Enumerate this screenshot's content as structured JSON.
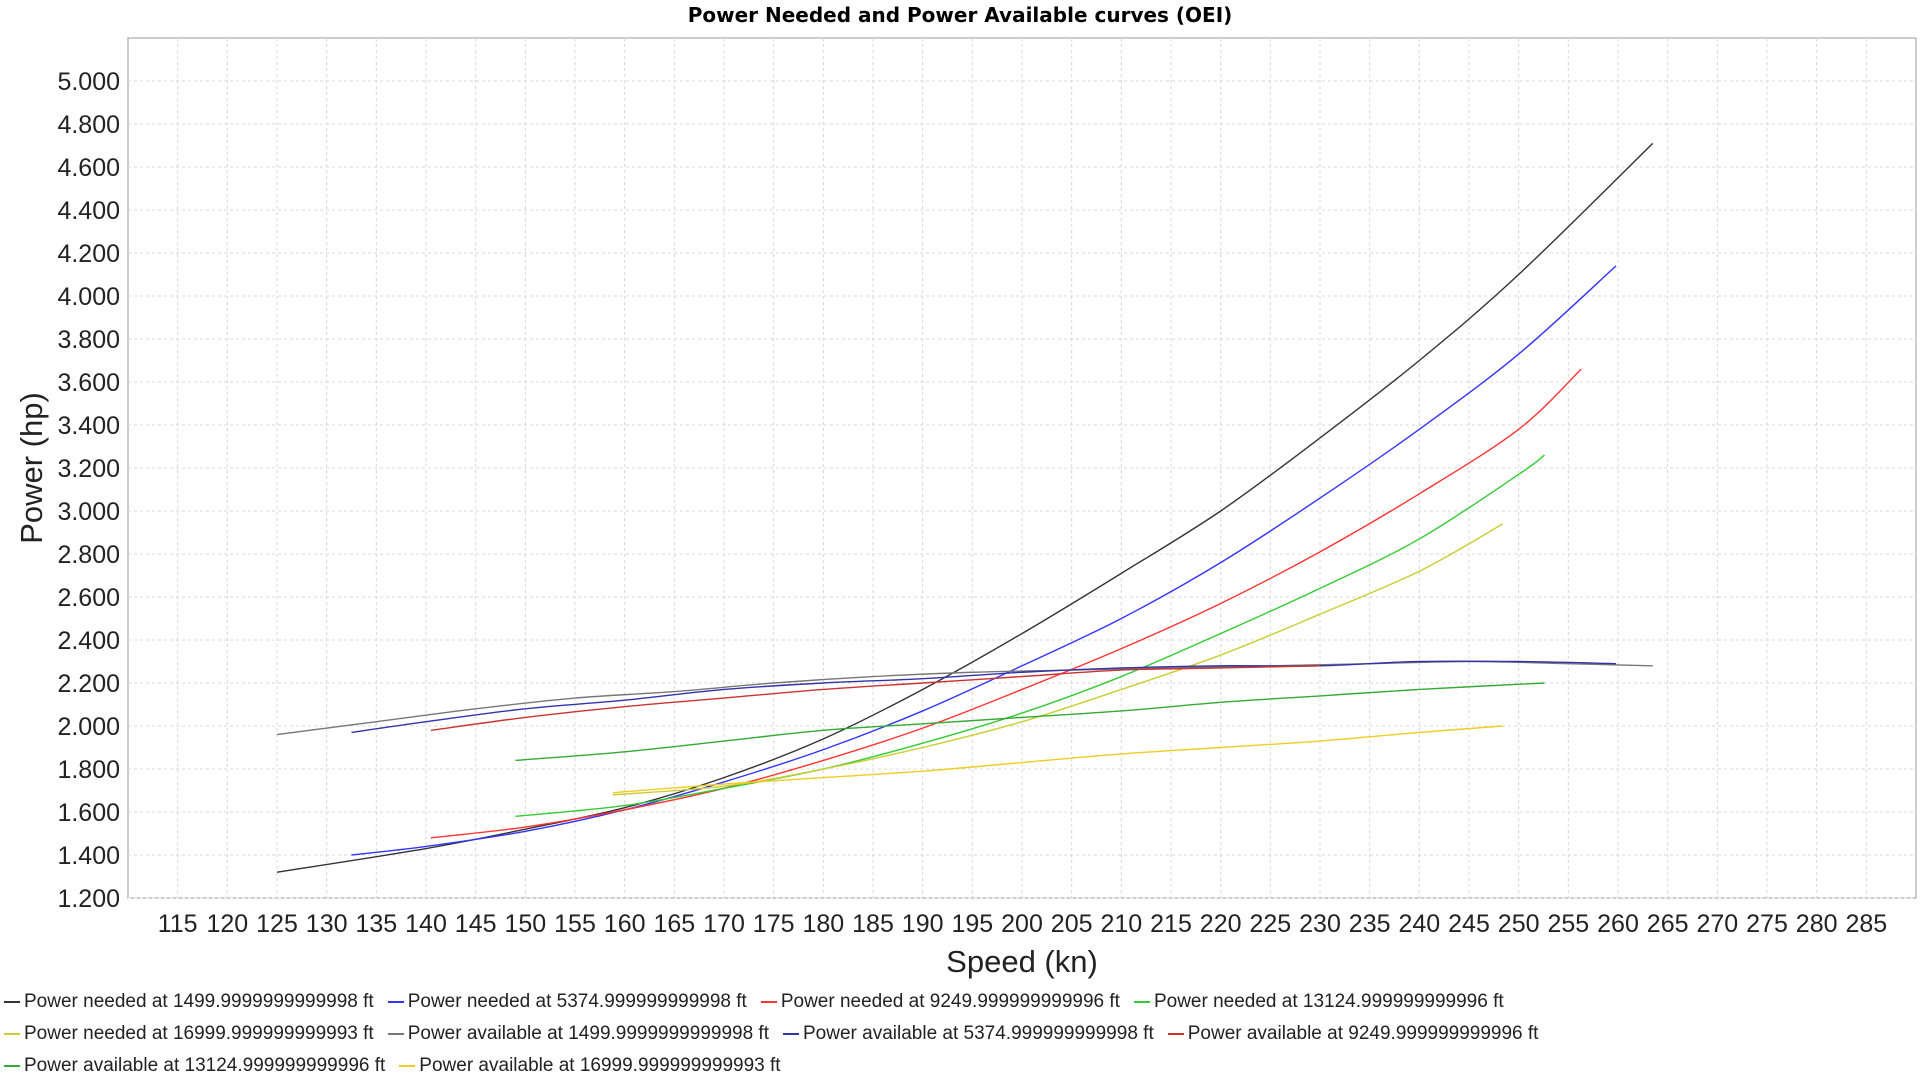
{
  "chart_data": {
    "type": "line",
    "title": "Power Needed and Power Available curves (OEI)",
    "xlabel": "Speed (kn)",
    "ylabel": "Power (hp)",
    "xlim": [
      110,
      290
    ],
    "ylim": [
      1200,
      5200
    ],
    "x_ticks": [
      115,
      120,
      125,
      130,
      135,
      140,
      145,
      150,
      155,
      160,
      165,
      170,
      175,
      180,
      185,
      190,
      195,
      200,
      205,
      210,
      215,
      220,
      225,
      230,
      235,
      240,
      245,
      250,
      255,
      260,
      265,
      270,
      275,
      280,
      285
    ],
    "x_tick_labels": [
      "115",
      "120",
      "125",
      "130",
      "135",
      "140",
      "145",
      "150",
      "155",
      "160",
      "165",
      "170",
      "175",
      "180",
      "185",
      "190",
      "195",
      "200",
      "205",
      "210",
      "215",
      "220",
      "225",
      "230",
      "235",
      "240",
      "245",
      "250",
      "255",
      "260",
      "265",
      "270",
      "275",
      "280",
      "285"
    ],
    "y_ticks": [
      1200,
      1400,
      1600,
      1800,
      2000,
      2200,
      2400,
      2600,
      2800,
      3000,
      3200,
      3400,
      3600,
      3800,
      4000,
      4200,
      4400,
      4600,
      4800,
      5000
    ],
    "y_tick_labels": [
      "1.200",
      "1.400",
      "1.600",
      "1.800",
      "2.000",
      "2.200",
      "2.400",
      "2.600",
      "2.800",
      "3.000",
      "3.200",
      "3.400",
      "3.600",
      "3.800",
      "4.000",
      "4.200",
      "4.400",
      "4.600",
      "4.800",
      "5.000"
    ],
    "grid": true,
    "legend_position": "bottom",
    "series": [
      {
        "name": "Power needed at 1499.9999999999998 ft",
        "color": "#333333",
        "x": [
          125,
          140,
          150,
          160,
          170,
          180,
          190,
          200,
          210,
          220,
          230,
          240,
          250,
          263.5
        ],
        "y": [
          1320,
          1430,
          1520,
          1620,
          1760,
          1940,
          2170,
          2430,
          2710,
          3000,
          3340,
          3700,
          4100,
          4710
        ]
      },
      {
        "name": "Power needed at 5374.999999999998 ft",
        "color": "#3333ff",
        "x": [
          132.5,
          140,
          150,
          160,
          170,
          180,
          190,
          200,
          210,
          220,
          230,
          240,
          250,
          259.8
        ],
        "y": [
          1400,
          1440,
          1510,
          1610,
          1740,
          1890,
          2070,
          2280,
          2500,
          2760,
          3060,
          3380,
          3730,
          4140
        ]
      },
      {
        "name": "Power needed at 9249.999999999996 ft",
        "color": "#ff3333",
        "x": [
          140.5,
          150,
          160,
          170,
          180,
          190,
          200,
          210,
          220,
          230,
          240,
          250,
          256.3
        ],
        "y": [
          1480,
          1530,
          1610,
          1710,
          1840,
          1990,
          2170,
          2360,
          2570,
          2810,
          3080,
          3380,
          3660
        ]
      },
      {
        "name": "Power needed at 13124.999999999996 ft",
        "color": "#33cc33",
        "x": [
          149,
          160,
          170,
          180,
          190,
          200,
          210,
          220,
          230,
          240,
          250,
          252.6
        ],
        "y": [
          1580,
          1630,
          1710,
          1800,
          1920,
          2060,
          2230,
          2430,
          2640,
          2870,
          3170,
          3260
        ]
      },
      {
        "name": "Power needed at 16999.999999999993 ft",
        "color": "#cccc33",
        "x": [
          158.8,
          170,
          180,
          190,
          200,
          210,
          220,
          230,
          240,
          248.4
        ],
        "y": [
          1680,
          1720,
          1800,
          1900,
          2020,
          2170,
          2330,
          2520,
          2720,
          2940
        ]
      },
      {
        "name": "Power available at 1499.9999999999998 ft",
        "color": "#777777",
        "x": [
          125,
          135,
          145,
          155,
          165,
          175,
          185,
          195,
          205,
          215,
          225,
          235,
          245,
          255,
          263.5
        ],
        "y": [
          1960,
          2020,
          2080,
          2130,
          2160,
          2200,
          2230,
          2250,
          2260,
          2270,
          2280,
          2290,
          2300,
          2290,
          2280
        ]
      },
      {
        "name": "Power available at 5374.999999999998 ft",
        "color": "#3333aa",
        "x": [
          132.5,
          140,
          150,
          160,
          170,
          180,
          190,
          200,
          210,
          220,
          230,
          240,
          250,
          259.8
        ],
        "y": [
          1970,
          2020,
          2080,
          2120,
          2170,
          2200,
          2220,
          2250,
          2270,
          2280,
          2280,
          2300,
          2300,
          2290
        ]
      },
      {
        "name": "Power available at 9249.999999999996 ft",
        "color": "#cc3333",
        "x": [
          140.5,
          150,
          160,
          170,
          180,
          190,
          200,
          210,
          220,
          230
        ],
        "y": [
          1980,
          2040,
          2090,
          2130,
          2170,
          2200,
          2230,
          2260,
          2270,
          2280
        ]
      },
      {
        "name": "Power available at 13124.999999999996 ft",
        "color": "#33aa33",
        "x": [
          149,
          160,
          170,
          180,
          190,
          200,
          210,
          220,
          230,
          240,
          252.6
        ],
        "y": [
          1840,
          1880,
          1930,
          1980,
          2010,
          2040,
          2070,
          2110,
          2140,
          2170,
          2200
        ]
      },
      {
        "name": "Power available at 16999.999999999993 ft",
        "color": "#eecc22",
        "x": [
          158.8,
          170,
          180,
          190,
          200,
          210,
          220,
          230,
          240,
          248.4
        ],
        "y": [
          1690,
          1730,
          1760,
          1790,
          1830,
          1870,
          1900,
          1930,
          1970,
          2000
        ]
      }
    ]
  }
}
